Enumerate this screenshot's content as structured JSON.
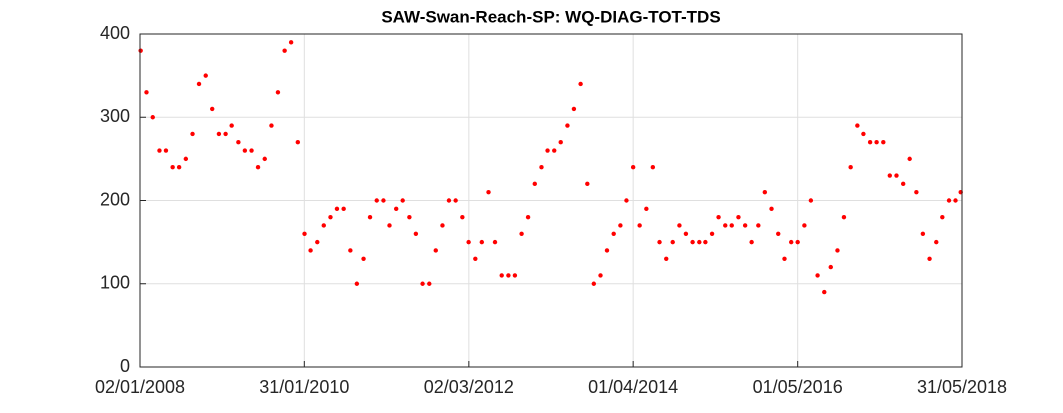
{
  "chart_data": {
    "type": "scatter",
    "title": "SAW-Swan-Reach-SP: WQ-DIAG-TOT-TDS",
    "x": [
      "2008-01-05",
      "2008-02-01",
      "2008-03-01",
      "2008-04-01",
      "2008-05-01",
      "2008-06-01",
      "2008-07-01",
      "2008-08-01",
      "2008-09-01",
      "2008-10-01",
      "2008-11-01",
      "2008-12-01",
      "2009-01-01",
      "2009-02-01",
      "2009-03-01",
      "2009-04-01",
      "2009-05-01",
      "2009-06-01",
      "2009-07-01",
      "2009-08-01",
      "2009-09-01",
      "2009-10-01",
      "2009-11-01",
      "2009-12-01",
      "2010-01-01",
      "2010-02-01",
      "2010-03-01",
      "2010-04-01",
      "2010-05-01",
      "2010-06-01",
      "2010-07-01",
      "2010-08-01",
      "2010-09-01",
      "2010-10-01",
      "2010-11-01",
      "2010-12-01",
      "2011-01-01",
      "2011-02-01",
      "2011-03-01",
      "2011-04-01",
      "2011-05-01",
      "2011-06-01",
      "2011-07-01",
      "2011-08-01",
      "2011-09-01",
      "2011-10-01",
      "2011-11-01",
      "2011-12-01",
      "2012-01-01",
      "2012-02-01",
      "2012-03-01",
      "2012-04-01",
      "2012-05-01",
      "2012-06-01",
      "2012-07-01",
      "2012-08-01",
      "2012-09-01",
      "2012-10-01",
      "2012-11-01",
      "2012-12-01",
      "2013-01-01",
      "2013-02-01",
      "2013-03-01",
      "2013-04-01",
      "2013-05-01",
      "2013-06-01",
      "2013-07-01",
      "2013-08-01",
      "2013-09-01",
      "2013-10-01",
      "2013-11-01",
      "2013-12-01",
      "2014-01-01",
      "2014-02-01",
      "2014-03-01",
      "2014-04-01",
      "2014-05-01",
      "2014-06-01",
      "2014-07-01",
      "2014-08-01",
      "2014-09-01",
      "2014-10-01",
      "2014-11-01",
      "2014-12-01",
      "2015-01-01",
      "2015-02-01",
      "2015-03-01",
      "2015-04-01",
      "2015-05-01",
      "2015-06-01",
      "2015-07-01",
      "2015-08-01",
      "2015-09-01",
      "2015-10-01",
      "2015-11-01",
      "2015-12-01",
      "2016-01-01",
      "2016-02-01",
      "2016-03-01",
      "2016-04-01",
      "2016-05-01",
      "2016-06-01",
      "2016-07-01",
      "2016-08-01",
      "2016-09-01",
      "2016-10-01",
      "2016-11-01",
      "2016-12-01",
      "2017-01-01",
      "2017-02-01",
      "2017-03-01",
      "2017-04-01",
      "2017-05-01",
      "2017-06-01",
      "2017-07-01",
      "2017-08-01",
      "2017-09-01",
      "2017-10-01",
      "2017-11-01",
      "2017-12-01",
      "2018-01-01",
      "2018-02-01",
      "2018-03-01",
      "2018-04-01",
      "2018-05-01",
      "2018-05-25"
    ],
    "values": [
      380,
      330,
      300,
      260,
      260,
      240,
      240,
      250,
      280,
      340,
      350,
      310,
      280,
      280,
      290,
      270,
      260,
      260,
      240,
      250,
      290,
      330,
      380,
      390,
      270,
      160,
      140,
      150,
      170,
      180,
      190,
      190,
      140,
      100,
      130,
      180,
      200,
      200,
      170,
      190,
      200,
      180,
      160,
      100,
      100,
      140,
      170,
      200,
      200,
      180,
      150,
      130,
      150,
      210,
      150,
      110,
      110,
      110,
      160,
      180,
      220,
      240,
      260,
      260,
      270,
      290,
      310,
      340,
      220,
      100,
      110,
      140,
      160,
      170,
      200,
      240,
      170,
      190,
      240,
      150,
      130,
      150,
      170,
      160,
      150,
      150,
      150,
      160,
      180,
      170,
      170,
      180,
      170,
      150,
      170,
      210,
      190,
      160,
      130,
      150,
      150,
      170,
      200,
      110,
      90,
      120,
      140,
      180,
      240,
      290,
      280,
      270,
      270,
      270,
      230,
      230,
      220,
      250,
      210,
      160,
      130,
      150,
      180,
      200,
      200,
      210
    ],
    "color": "#ff0000",
    "xlim": [
      "2008-01-02",
      "2018-05-31"
    ],
    "xticks": [
      {
        "value": "2008-01-02",
        "label": "02/01/2008"
      },
      {
        "value": "2010-01-31",
        "label": "31/01/2010"
      },
      {
        "value": "2012-03-02",
        "label": "02/03/2012"
      },
      {
        "value": "2014-04-01",
        "label": "01/04/2014"
      },
      {
        "value": "2016-05-01",
        "label": "01/05/2016"
      },
      {
        "value": "2018-05-31",
        "label": "31/05/2018"
      }
    ],
    "ylim": [
      0,
      400
    ],
    "yticks": [
      0,
      100,
      200,
      300,
      400
    ],
    "grid": true
  }
}
